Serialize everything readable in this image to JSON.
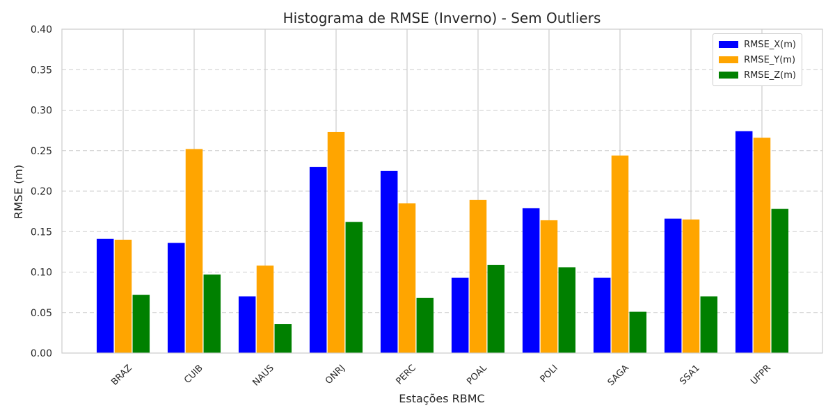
{
  "chart_data": {
    "type": "bar",
    "title": "Histograma de RMSE (Inverno) - Sem Outliers",
    "xlabel": "Estações RBMC",
    "ylabel": "RMSE (m)",
    "ylim": [
      0,
      0.4
    ],
    "yticks": [
      "0.00",
      "0.05",
      "0.10",
      "0.15",
      "0.20",
      "0.25",
      "0.30",
      "0.35",
      "0.40"
    ],
    "grid": true,
    "legend_position": "top-right",
    "categories": [
      "BRAZ",
      "CUIB",
      "NAUS",
      "ONRJ",
      "PERC",
      "POAL",
      "POLI",
      "SAGA",
      "SSA1",
      "UFPR"
    ],
    "series": [
      {
        "name": "RMSE_X(m)",
        "color": "#0000ff",
        "values": [
          0.141,
          0.136,
          0.07,
          0.23,
          0.225,
          0.093,
          0.179,
          0.093,
          0.166,
          0.274
        ]
      },
      {
        "name": "RMSE_Y(m)",
        "color": "#ffa500",
        "values": [
          0.14,
          0.252,
          0.108,
          0.273,
          0.185,
          0.189,
          0.164,
          0.244,
          0.165,
          0.266
        ]
      },
      {
        "name": "RMSE_Z(m)",
        "color": "#008000",
        "values": [
          0.072,
          0.097,
          0.036,
          0.162,
          0.068,
          0.109,
          0.106,
          0.051,
          0.07,
          0.178
        ]
      }
    ]
  }
}
